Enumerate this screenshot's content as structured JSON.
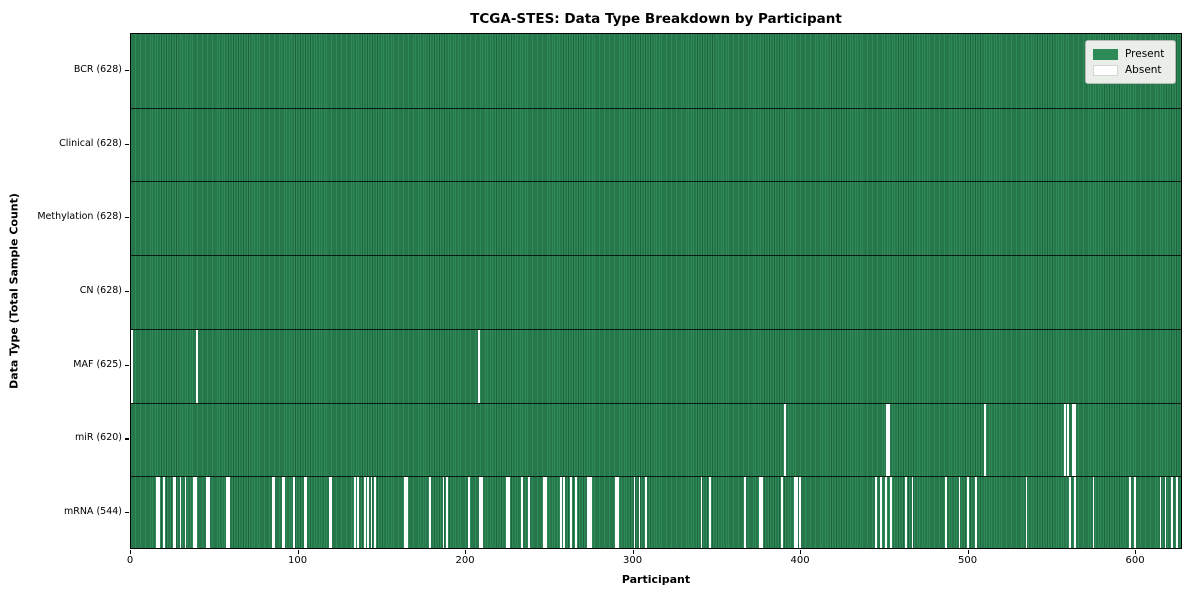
{
  "chart_data": {
    "type": "heatmap",
    "title": "TCGA-STES: Data Type Breakdown by Participant",
    "xlabel": "Participant",
    "ylabel": "Data Type (Total Sample Count)",
    "x_ticks": [
      0,
      100,
      200,
      300,
      400,
      500,
      600
    ],
    "total_participants": 628,
    "grid": false,
    "legend_position": "upper right",
    "legend": [
      {
        "label": "Present",
        "color": "#2e8b57"
      },
      {
        "label": "Absent",
        "color": "#ffffff"
      }
    ],
    "rows": [
      {
        "label": "BCR (628)",
        "data_type": "BCR",
        "present_count": 628,
        "absent_participants": []
      },
      {
        "label": "Clinical (628)",
        "data_type": "Clinical",
        "present_count": 628,
        "absent_participants": []
      },
      {
        "label": "Methylation (628)",
        "data_type": "Methylation",
        "present_count": 628,
        "absent_participants": []
      },
      {
        "label": "CN (628)",
        "data_type": "CN",
        "present_count": 628,
        "absent_participants": []
      },
      {
        "label": "MAF (625)",
        "data_type": "MAF",
        "present_count": 625,
        "absent_participants": [
          0,
          39,
          207
        ]
      },
      {
        "label": "miR (620)",
        "data_type": "miR",
        "present_count": 620,
        "absent_participants": [
          390,
          451,
          452,
          509,
          557,
          559,
          562,
          563
        ]
      },
      {
        "label": "mRNA (544)",
        "data_type": "mRNA",
        "present_count": 544,
        "absent_participants": [
          15,
          16,
          19,
          25,
          26,
          29,
          32,
          37,
          38,
          45,
          46,
          57,
          58,
          84,
          85,
          90,
          91,
          97,
          103,
          104,
          118,
          119,
          133,
          135,
          139,
          141,
          143,
          145,
          163,
          164,
          178,
          186,
          188,
          201,
          208,
          209,
          224,
          225,
          233,
          237,
          246,
          247,
          256,
          258,
          262,
          265,
          272,
          273,
          274,
          289,
          290,
          300,
          303,
          307,
          340,
          345,
          366,
          375,
          376,
          388,
          396,
          397,
          399,
          444,
          447,
          450,
          453,
          462,
          466,
          486,
          494,
          499,
          504,
          534,
          560,
          563,
          574,
          596,
          599,
          614,
          617,
          621,
          624,
          627
        ]
      }
    ],
    "colors": {
      "present": "#2e8b57",
      "present_edge": "#1e6340",
      "absent": "#ffffff",
      "row_separator": "#000000",
      "legend_background": "#e9eee9",
      "legend_border": "#b4bbb4"
    }
  }
}
